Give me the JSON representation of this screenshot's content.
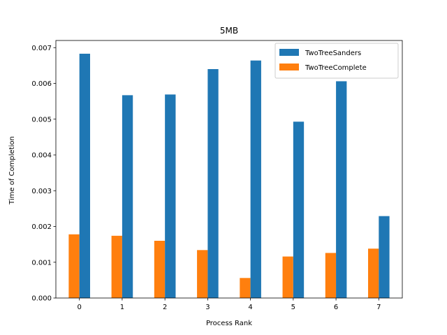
{
  "chart_data": {
    "type": "bar",
    "title": "5MB",
    "xlabel": "Process Rank",
    "ylabel": "Time of Completion",
    "categories": [
      "0",
      "1",
      "2",
      "3",
      "4",
      "5",
      "6",
      "7"
    ],
    "series": [
      {
        "name": "TwoTreeComplete",
        "color": "#ff7f0e",
        "values": [
          0.00178,
          0.00174,
          0.0016,
          0.00134,
          0.00056,
          0.00116,
          0.00126,
          0.00138
        ]
      },
      {
        "name": "TwoTreeSanders",
        "color": "#1f77b4",
        "values": [
          0.00683,
          0.00567,
          0.00569,
          0.0064,
          0.00664,
          0.00493,
          0.00606,
          0.00229
        ]
      }
    ],
    "ylim": [
      0,
      0.0072
    ],
    "yticks": [
      "0.000",
      "0.001",
      "0.002",
      "0.003",
      "0.004",
      "0.005",
      "0.006",
      "0.007"
    ],
    "ytick_values": [
      0,
      0.001,
      0.002,
      0.003,
      0.004,
      0.005,
      0.006,
      0.007
    ],
    "xlim": [
      -0.55,
      7.55
    ],
    "legend": {
      "placement": "top-right",
      "entries": [
        {
          "label": "TwoTreeSanders",
          "color": "#1f77b4"
        },
        {
          "label": "TwoTreeComplete",
          "color": "#ff7f0e"
        }
      ]
    },
    "grid": false
  }
}
